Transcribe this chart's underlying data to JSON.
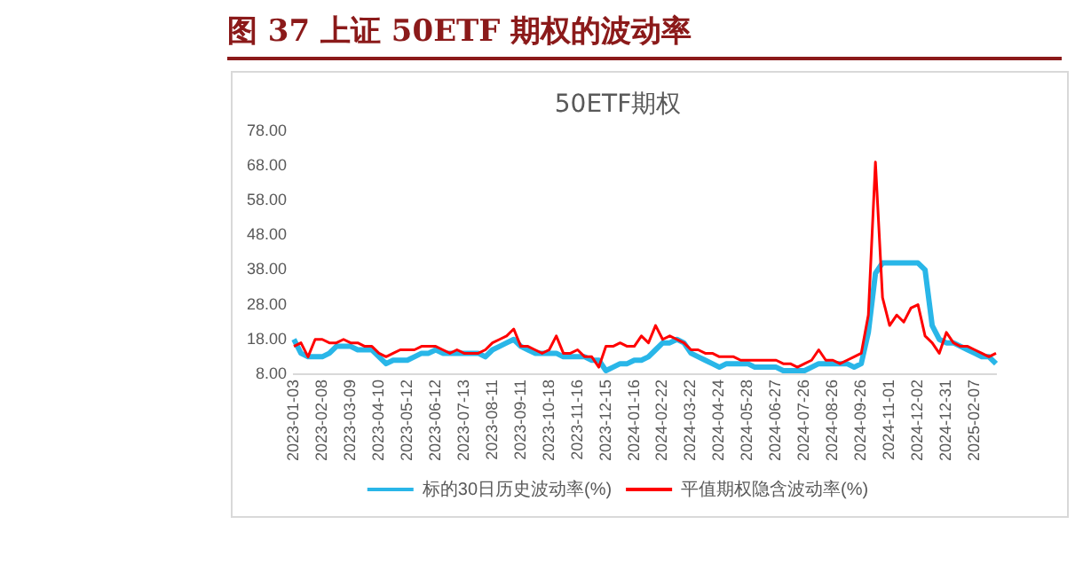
{
  "chart_data": {
    "type": "line",
    "title": "图 37 上证 50ETF 期权的波动率",
    "subtitle": "50ETF期权",
    "categories": [
      "2023-01-03",
      null,
      null,
      null,
      "2023-02-08",
      null,
      null,
      null,
      "2023-03-09",
      null,
      null,
      null,
      "2023-04-10",
      null,
      null,
      null,
      "2023-05-12",
      null,
      null,
      null,
      "2023-06-12",
      null,
      null,
      null,
      "2023-07-13",
      null,
      null,
      null,
      "2023-08-11",
      null,
      null,
      null,
      "2023-09-11",
      null,
      null,
      null,
      "2023-10-18",
      null,
      null,
      null,
      "2023-11-16",
      null,
      null,
      null,
      "2023-12-15",
      null,
      null,
      null,
      "2024-01-16",
      null,
      null,
      null,
      "2024-02-22",
      null,
      null,
      null,
      "2024-03-22",
      null,
      null,
      null,
      "2024-04-24",
      null,
      null,
      null,
      "2024-05-28",
      null,
      null,
      null,
      "2024-06-27",
      null,
      null,
      null,
      "2024-07-26",
      null,
      null,
      null,
      "2024-08-26",
      null,
      null,
      null,
      "2024-09-26",
      null,
      null,
      null,
      "2024-11-01",
      null,
      null,
      null,
      "2024-12-02",
      null,
      null,
      null,
      "2024-12-31",
      null,
      null,
      null,
      "2025-02-07",
      null,
      null,
      null
    ],
    "series": [
      {
        "name": "标的30日历史波动率(%)",
        "color": "#29b6e8",
        "values": [
          18,
          14,
          13,
          13,
          13,
          14,
          16,
          16,
          16,
          15,
          15,
          15,
          13,
          11,
          12,
          12,
          12,
          13,
          14,
          14,
          15,
          14,
          14,
          14,
          14,
          14,
          14,
          13,
          15,
          16,
          17,
          18,
          16,
          15,
          14,
          14,
          14,
          14,
          13,
          13,
          13,
          13,
          12,
          12,
          9,
          10,
          11,
          11,
          12,
          12,
          13,
          15,
          17,
          17,
          18,
          17,
          14,
          13,
          12,
          11,
          10,
          11,
          11,
          11,
          11,
          10,
          10,
          10,
          10,
          9,
          9,
          9,
          9,
          10,
          11,
          11,
          11,
          11,
          11,
          10,
          11,
          20,
          37,
          40,
          40,
          40,
          40,
          40,
          40,
          38,
          22,
          18,
          17,
          17,
          16,
          15,
          14,
          13,
          13,
          11
        ]
      },
      {
        "name": "平值期权隐含波动率(%)",
        "color": "#ff0000",
        "values": [
          16,
          17,
          13,
          18,
          18,
          17,
          17,
          18,
          17,
          17,
          16,
          16,
          14,
          13,
          14,
          15,
          15,
          15,
          16,
          16,
          16,
          15,
          14,
          15,
          14,
          14,
          14,
          15,
          17,
          18,
          19,
          21,
          16,
          16,
          15,
          14,
          15,
          19,
          14,
          14,
          15,
          13,
          13,
          10,
          16,
          16,
          17,
          16,
          16,
          19,
          17,
          22,
          18,
          19,
          18,
          17,
          15,
          15,
          14,
          14,
          13,
          13,
          13,
          12,
          12,
          12,
          12,
          12,
          12,
          11,
          11,
          10,
          11,
          12,
          15,
          12,
          12,
          11,
          12,
          13,
          14,
          25,
          69,
          30,
          22,
          25,
          23,
          27,
          28,
          19,
          17,
          14,
          20,
          17,
          16,
          16,
          15,
          14,
          13,
          14
        ]
      }
    ],
    "ylim": [
      8,
      78
    ],
    "yticks": [
      {
        "value": 8,
        "label": "8.00"
      },
      {
        "value": 18,
        "label": "18.00"
      },
      {
        "value": 28,
        "label": "28.00"
      },
      {
        "value": 38,
        "label": "38.00"
      },
      {
        "value": 48,
        "label": "48.00"
      },
      {
        "value": 58,
        "label": "58.00"
      },
      {
        "value": 68,
        "label": "68.00"
      },
      {
        "value": 78,
        "label": "78.00"
      }
    ],
    "legend": "bottom",
    "marker": "none",
    "line_style": "solid"
  }
}
